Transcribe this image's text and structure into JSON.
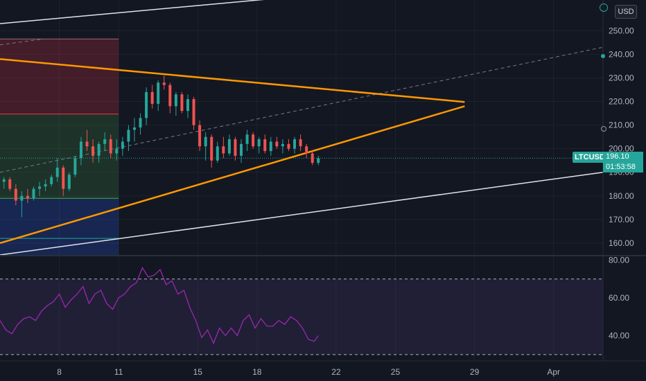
{
  "chart_data": [
    {
      "type": "candlestick",
      "symbol": "LTCUSD",
      "currency": "USD",
      "last_price": "196.10",
      "countdown": "01:53:58",
      "y_ticks": [
        "250.00",
        "240.00",
        "230.00",
        "220.00",
        "210.00",
        "200.00",
        "190.00",
        "180.00",
        "170.00",
        "160.00"
      ],
      "ylim": [
        155,
        263
      ],
      "x_ticks": [
        "8",
        "11",
        "15",
        "18",
        "22",
        "25",
        "29",
        "Apr"
      ],
      "xlim": [
        5.0,
        35.5
      ],
      "candles": [
        [
          5.2,
          186,
          188,
          183,
          187
        ],
        [
          5.5,
          187,
          188,
          182,
          183
        ],
        [
          5.8,
          183,
          185,
          176,
          178
        ],
        [
          6.1,
          178,
          182,
          171,
          180
        ],
        [
          6.4,
          180,
          183,
          177,
          179
        ],
        [
          6.7,
          179,
          184,
          178,
          183
        ],
        [
          7.0,
          183,
          186,
          180,
          184
        ],
        [
          7.3,
          184,
          187,
          182,
          185
        ],
        [
          7.6,
          185,
          189,
          184,
          188
        ],
        [
          7.9,
          188,
          196,
          186,
          192
        ],
        [
          8.2,
          192,
          193,
          180,
          183
        ],
        [
          8.5,
          183,
          190,
          182,
          189
        ],
        [
          8.8,
          189,
          197,
          188,
          196
        ],
        [
          9.1,
          196,
          205,
          193,
          203
        ],
        [
          9.4,
          203,
          208,
          199,
          201
        ],
        [
          9.7,
          201,
          204,
          194,
          197
        ],
        [
          10.0,
          197,
          203,
          194,
          202
        ],
        [
          10.3,
          202,
          207,
          199,
          204
        ],
        [
          10.6,
          204,
          206,
          196,
          198
        ],
        [
          10.9,
          198,
          204,
          195,
          200
        ],
        [
          11.2,
          200,
          205,
          197,
          203
        ],
        [
          11.5,
          203,
          210,
          199,
          208
        ],
        [
          11.8,
          208,
          213,
          203,
          209
        ],
        [
          12.1,
          209,
          215,
          206,
          213
        ],
        [
          12.4,
          213,
          226,
          210,
          224
        ],
        [
          12.7,
          224,
          227,
          217,
          219
        ],
        [
          13.0,
          219,
          229,
          216,
          228
        ],
        [
          13.3,
          228,
          231,
          225,
          227
        ],
        [
          13.6,
          227,
          228,
          215,
          218
        ],
        [
          13.9,
          218,
          224,
          214,
          223
        ],
        [
          14.2,
          223,
          224,
          215,
          216
        ],
        [
          14.5,
          216,
          223,
          213,
          221
        ],
        [
          14.8,
          221,
          222,
          208,
          210
        ],
        [
          15.1,
          210,
          212,
          199,
          201
        ],
        [
          15.4,
          201,
          207,
          195,
          205
        ],
        [
          15.7,
          205,
          206,
          192,
          195
        ],
        [
          16.0,
          195,
          203,
          194,
          201
        ],
        [
          16.3,
          201,
          205,
          196,
          198
        ],
        [
          16.6,
          198,
          206,
          197,
          204
        ],
        [
          16.9,
          204,
          205,
          195,
          197
        ],
        [
          17.2,
          197,
          204,
          194,
          202
        ],
        [
          17.5,
          202,
          208,
          199,
          206
        ],
        [
          17.8,
          206,
          207,
          200,
          201
        ],
        [
          18.1,
          201,
          205,
          198,
          204
        ],
        [
          18.4,
          204,
          206,
          198,
          199
        ],
        [
          18.7,
          199,
          205,
          197,
          203
        ],
        [
          19.0,
          203,
          205,
          200,
          201
        ],
        [
          19.3,
          201,
          204,
          198,
          202
        ],
        [
          19.6,
          202,
          204,
          199,
          200
        ],
        [
          19.9,
          200,
          205,
          198,
          204
        ],
        [
          20.2,
          204,
          206,
          199,
          201
        ],
        [
          20.5,
          201,
          202,
          196,
          198
        ],
        [
          20.8,
          198,
          199,
          193,
          194
        ],
        [
          21.1,
          194,
          197,
          193,
          196
        ]
      ],
      "annotations": {
        "triangle_upper": [
          [
            5.0,
            238
          ],
          [
            28.5,
            219.8
          ]
        ],
        "triangle_lower": [
          [
            5.0,
            160
          ],
          [
            28.5,
            218
          ]
        ],
        "channel_upper": [
          [
            5.0,
            253
          ],
          [
            22.0,
            266
          ]
        ],
        "channel_lower": [
          [
            5.0,
            155
          ],
          [
            35.5,
            190
          ]
        ],
        "dashed_top": [
          [
            5.0,
            244
          ],
          [
            7.2,
            246.5
          ]
        ],
        "dashed_mid": [
          [
            5.0,
            190
          ],
          [
            35.5,
            243
          ]
        ],
        "levels": [
          246.5,
          214.7,
          196,
          179,
          162
        ],
        "box_end_x": 11.0
      }
    },
    {
      "type": "line",
      "name": "RSI",
      "y_ticks": [
        "80.00",
        "60.00",
        "40.00"
      ],
      "ylim": [
        27,
        82
      ],
      "bands": [
        70,
        30
      ],
      "values": [
        [
          5.0,
          48
        ],
        [
          5.3,
          43
        ],
        [
          5.6,
          41
        ],
        [
          5.9,
          46
        ],
        [
          6.2,
          49
        ],
        [
          6.5,
          50
        ],
        [
          6.8,
          48
        ],
        [
          7.1,
          53
        ],
        [
          7.4,
          56
        ],
        [
          7.7,
          58
        ],
        [
          8.0,
          62
        ],
        [
          8.3,
          55
        ],
        [
          8.6,
          59
        ],
        [
          8.9,
          62
        ],
        [
          9.2,
          66
        ],
        [
          9.5,
          57
        ],
        [
          9.8,
          62
        ],
        [
          10.1,
          64
        ],
        [
          10.4,
          57
        ],
        [
          10.7,
          54
        ],
        [
          11.0,
          60
        ],
        [
          11.3,
          62
        ],
        [
          11.6,
          66
        ],
        [
          11.9,
          68
        ],
        [
          12.2,
          76
        ],
        [
          12.5,
          71
        ],
        [
          12.8,
          72
        ],
        [
          13.1,
          75
        ],
        [
          13.4,
          67
        ],
        [
          13.7,
          69
        ],
        [
          14.0,
          62
        ],
        [
          14.3,
          64
        ],
        [
          14.6,
          55
        ],
        [
          14.9,
          48
        ],
        [
          15.2,
          39
        ],
        [
          15.5,
          43
        ],
        [
          15.8,
          36
        ],
        [
          16.1,
          44
        ],
        [
          16.4,
          40
        ],
        [
          16.7,
          44
        ],
        [
          17.0,
          40
        ],
        [
          17.3,
          48
        ],
        [
          17.6,
          51
        ],
        [
          17.9,
          44
        ],
        [
          18.2,
          49
        ],
        [
          18.5,
          45
        ],
        [
          18.8,
          45
        ],
        [
          19.1,
          48
        ],
        [
          19.4,
          46
        ],
        [
          19.7,
          50
        ],
        [
          20.0,
          48
        ],
        [
          20.3,
          44
        ],
        [
          20.6,
          38
        ],
        [
          20.9,
          37
        ],
        [
          21.1,
          40
        ]
      ]
    }
  ]
}
